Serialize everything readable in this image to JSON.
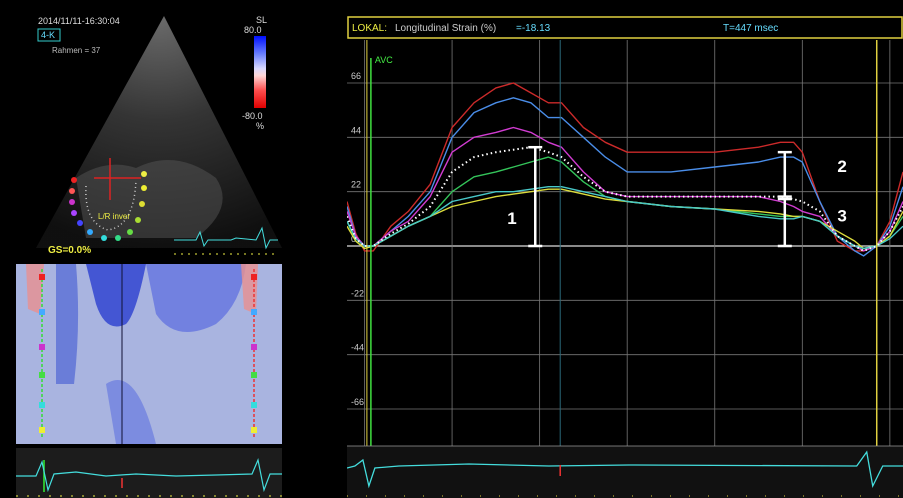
{
  "echo": {
    "datetime": "2014/11/11-16:30:04",
    "view": "4-K",
    "frame": "Rahmen = 37",
    "scale_label": "SL",
    "scale_max": "80.0",
    "scale_min": "-80.0",
    "scale_unit": "%",
    "overlay_label": "L/R inver",
    "gs_label": "GS=0.0%"
  },
  "header": {
    "label": "LOKAL:",
    "metric": "Longitudinal Strain (%)",
    "value": "=-18.13",
    "time": "T=447 msec"
  },
  "annotations": {
    "avc": "AVC",
    "marker_1": "1",
    "marker_2": "2",
    "marker_3": "3"
  },
  "colors": {
    "red": "#cc2a2a",
    "blue": "#4a8de8",
    "magenta": "#d23cd2",
    "green": "#34c45a",
    "yellow": "#dcdc3c",
    "cyan": "#48c8c8",
    "white": "#ffffff",
    "avc": "#40e040",
    "frame": "#e0d040"
  },
  "chart_data": {
    "type": "line",
    "title": "",
    "xlabel": "msec",
    "ylabel": "Longitudinal Strain (%)",
    "xlim": [
      -40,
      1230
    ],
    "ylim": [
      -80,
      80
    ],
    "x_ticks": [
      0,
      200,
      400,
      600,
      800,
      1000,
      1200
    ],
    "y_ticks": [
      66,
      44,
      22,
      0,
      -22,
      -44,
      -66
    ],
    "y_axis_inverted": true,
    "avc_x": 10,
    "cursor_x": 447,
    "end_x": 1170,
    "series": [
      {
        "color": "red",
        "x": [
          -40,
          -20,
          0,
          20,
          60,
          100,
          150,
          200,
          250,
          300,
          340,
          380,
          420,
          450,
          500,
          550,
          600,
          700,
          800,
          900,
          950,
          980,
          1000,
          1040,
          1080,
          1120,
          1140,
          1170,
          1200,
          1230
        ],
        "y": [
          18,
          5,
          -2,
          -2,
          8,
          14,
          25,
          48,
          58,
          64,
          66,
          62,
          58,
          58,
          48,
          42,
          38,
          38,
          38,
          40,
          42,
          42,
          38,
          18,
          2,
          -2,
          -2,
          0,
          10,
          30
        ]
      },
      {
        "color": "blue",
        "x": [
          -40,
          -20,
          0,
          20,
          60,
          100,
          150,
          200,
          250,
          300,
          340,
          380,
          420,
          450,
          500,
          550,
          600,
          700,
          800,
          900,
          950,
          980,
          1000,
          1040,
          1080,
          1120,
          1140,
          1170,
          1200,
          1230
        ],
        "y": [
          16,
          4,
          0,
          0,
          6,
          12,
          22,
          44,
          54,
          58,
          60,
          58,
          52,
          52,
          44,
          36,
          30,
          30,
          32,
          34,
          36,
          36,
          34,
          18,
          4,
          -2,
          -4,
          0,
          8,
          24
        ]
      },
      {
        "color": "magenta",
        "x": [
          -40,
          -20,
          0,
          20,
          60,
          100,
          150,
          200,
          250,
          300,
          340,
          380,
          420,
          450,
          500,
          550,
          600,
          700,
          800,
          900,
          950,
          980,
          1000,
          1040,
          1080,
          1120,
          1140,
          1170,
          1200,
          1230
        ],
        "y": [
          14,
          4,
          0,
          0,
          6,
          10,
          20,
          38,
          44,
          46,
          48,
          46,
          42,
          40,
          30,
          22,
          20,
          20,
          20,
          20,
          18,
          16,
          14,
          12,
          4,
          0,
          -2,
          0,
          6,
          18
        ]
      },
      {
        "color": "green",
        "x": [
          -40,
          -20,
          0,
          20,
          60,
          100,
          150,
          200,
          250,
          300,
          340,
          380,
          420,
          450,
          500,
          550,
          600,
          700,
          800,
          900,
          950,
          980,
          1000,
          1040,
          1080,
          1120,
          1140,
          1170,
          1200,
          1230
        ],
        "y": [
          10,
          2,
          -1,
          0,
          4,
          8,
          12,
          22,
          28,
          30,
          32,
          34,
          36,
          34,
          26,
          20,
          18,
          16,
          15,
          13,
          12,
          12,
          12,
          10,
          4,
          0,
          -1,
          0,
          4,
          12
        ]
      },
      {
        "color": "yellow",
        "x": [
          -40,
          -20,
          0,
          20,
          60,
          100,
          150,
          200,
          250,
          300,
          340,
          380,
          420,
          450,
          500,
          550,
          600,
          700,
          800,
          900,
          950,
          980,
          1000,
          1040,
          1080,
          1120,
          1140,
          1170,
          1200,
          1230
        ],
        "y": [
          8,
          2,
          -1,
          0,
          4,
          8,
          12,
          16,
          18,
          20,
          21,
          22,
          23,
          23,
          21,
          19,
          18,
          16,
          15,
          14,
          13,
          12,
          12,
          10,
          6,
          2,
          -1,
          0,
          4,
          14
        ]
      },
      {
        "color": "cyan",
        "x": [
          -40,
          -20,
          0,
          20,
          60,
          100,
          150,
          200,
          250,
          300,
          340,
          380,
          420,
          450,
          500,
          550,
          600,
          700,
          800,
          900,
          950,
          980,
          1000,
          1040,
          1080,
          1120,
          1140,
          1170,
          1200,
          1230
        ],
        "y": [
          10,
          3,
          0,
          0,
          4,
          8,
          12,
          18,
          20,
          22,
          22,
          23,
          24,
          24,
          22,
          20,
          18,
          16,
          15,
          12,
          11,
          11,
          12,
          10,
          4,
          0,
          -1,
          0,
          3,
          8
        ]
      },
      {
        "color": "white",
        "dashed": true,
        "x": [
          -40,
          -20,
          0,
          20,
          60,
          100,
          150,
          200,
          250,
          300,
          340,
          380,
          420,
          450,
          500,
          550,
          600,
          700,
          800,
          900,
          950,
          980,
          1000,
          1040,
          1080,
          1120,
          1140,
          1170,
          1200,
          1230
        ],
        "y": [
          12,
          3,
          0,
          0,
          5,
          9,
          16,
          30,
          36,
          38,
          39,
          40,
          38,
          36,
          28,
          22,
          20,
          20,
          20,
          20,
          20,
          19,
          18,
          14,
          4,
          0,
          -2,
          0,
          6,
          16
        ]
      }
    ]
  }
}
